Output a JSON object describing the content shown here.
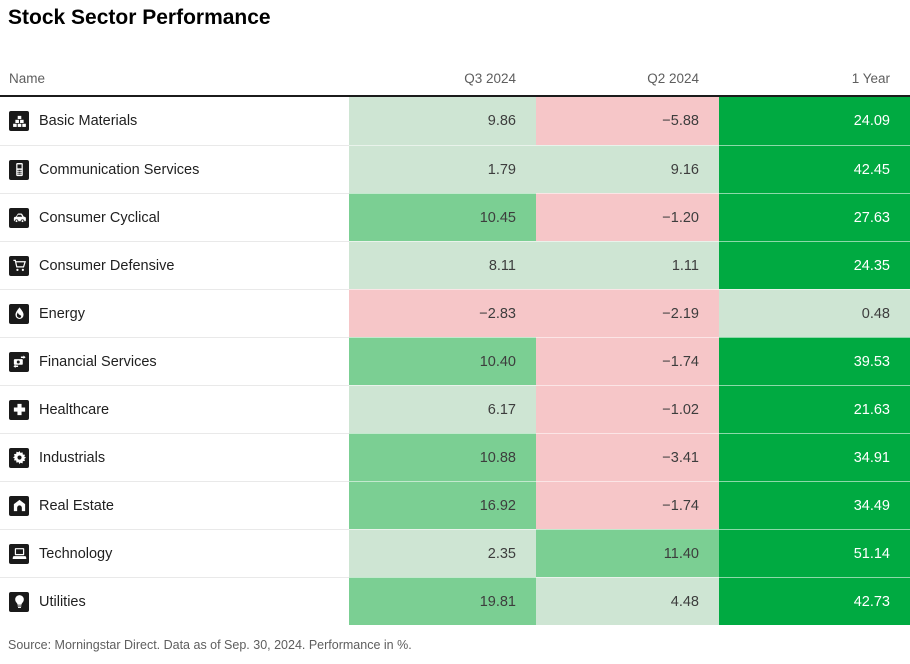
{
  "title": "Stock Sector Performance",
  "name_header": "Name",
  "footer_note": "Source: Morningstar Direct. Data as of Sep. 30, 2024. Performance in %.",
  "chart_data": {
    "type": "heatmap",
    "title": "Stock Sector Performance",
    "columns": [
      "Q3 2024",
      "Q2 2024",
      "1 Year"
    ],
    "rows": [
      {
        "sector": "Basic Materials",
        "icon": "basic-materials-icon",
        "values": [
          9.86,
          -5.88,
          24.09
        ]
      },
      {
        "sector": "Communication Services",
        "icon": "communication-services-icon",
        "values": [
          1.79,
          9.16,
          42.45
        ]
      },
      {
        "sector": "Consumer Cyclical",
        "icon": "consumer-cyclical-icon",
        "values": [
          10.45,
          -1.2,
          27.63
        ]
      },
      {
        "sector": "Consumer Defensive",
        "icon": "consumer-defensive-icon",
        "values": [
          8.11,
          1.11,
          24.35
        ]
      },
      {
        "sector": "Energy",
        "icon": "energy-icon",
        "values": [
          -2.83,
          -2.19,
          0.48
        ]
      },
      {
        "sector": "Financial Services",
        "icon": "financial-services-icon",
        "values": [
          10.4,
          -1.74,
          39.53
        ]
      },
      {
        "sector": "Healthcare",
        "icon": "healthcare-icon",
        "values": [
          6.17,
          -1.02,
          21.63
        ]
      },
      {
        "sector": "Industrials",
        "icon": "industrials-icon",
        "values": [
          10.88,
          -3.41,
          34.91
        ]
      },
      {
        "sector": "Real Estate",
        "icon": "real-estate-icon",
        "values": [
          16.92,
          -1.74,
          34.49
        ]
      },
      {
        "sector": "Technology",
        "icon": "technology-icon",
        "values": [
          2.35,
          11.4,
          51.14
        ]
      },
      {
        "sector": "Utilities",
        "icon": "utilities-icon",
        "values": [
          19.81,
          4.48,
          42.73
        ]
      }
    ],
    "color_scale": {
      "negative": "#f6c6c8",
      "low_positive": "#cee5d3",
      "mid_positive": "#7bcf93",
      "high_positive": "#00aa41",
      "thresholds": [
        0,
        10,
        20
      ]
    },
    "source_note": "Source: Morningstar Direct. Data as of Sep. 30, 2024. Performance in %."
  }
}
